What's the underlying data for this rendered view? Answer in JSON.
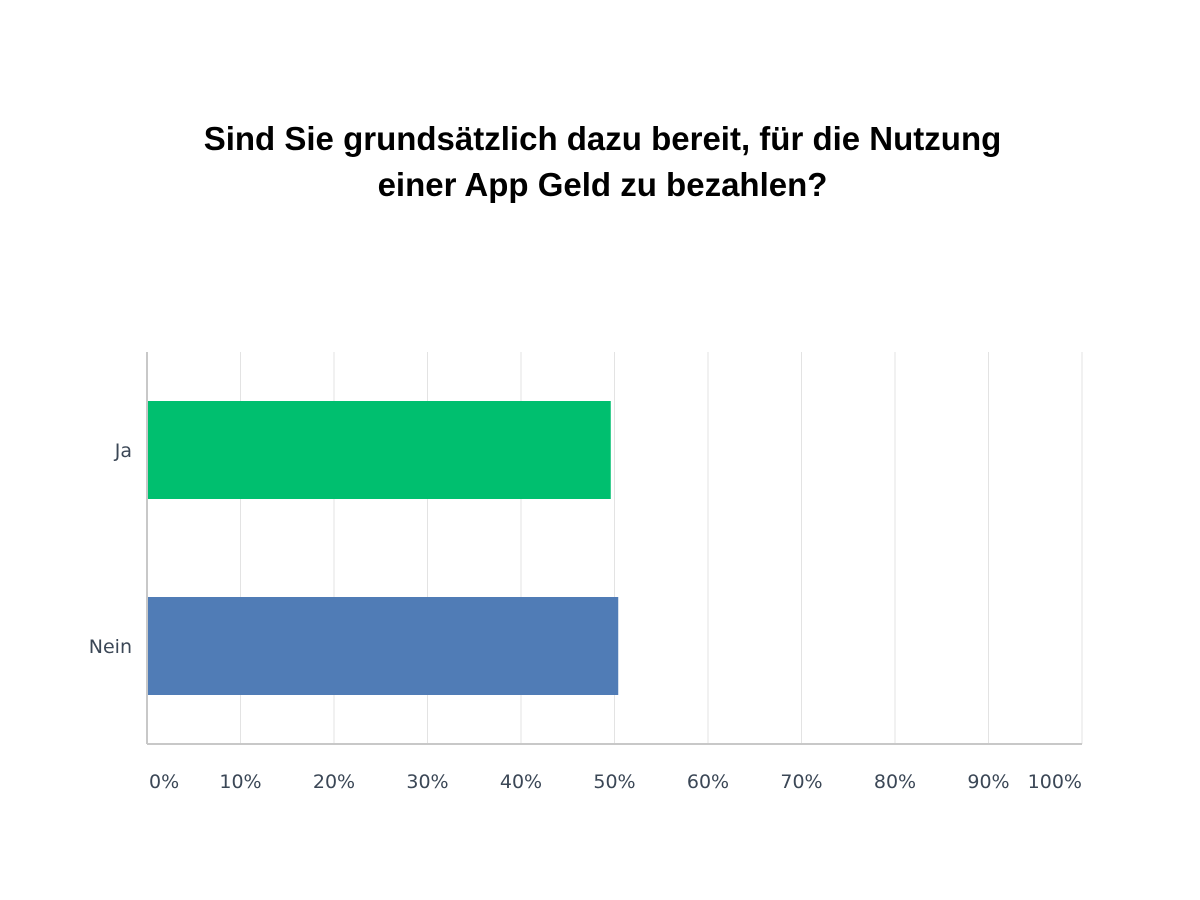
{
  "title_lines": [
    "Sind Sie grundsätzlich dazu bereit, für die Nutzung",
    "einer App Geld zu bezahlen?"
  ],
  "chart_data": {
    "type": "bar",
    "orientation": "horizontal",
    "title": "Sind Sie grundsätzlich dazu bereit, für die Nutzung einer App Geld zu bezahlen?",
    "categories": [
      "Ja",
      "Nein"
    ],
    "values": [
      49.6,
      50.4
    ],
    "value_unit": "%",
    "colors": [
      "#00bf6f",
      "#507cb6"
    ],
    "xlim": [
      0,
      100
    ],
    "xticks": [
      "0%",
      "10%",
      "20%",
      "30%",
      "40%",
      "50%",
      "60%",
      "70%",
      "80%",
      "90%",
      "100%"
    ],
    "xlabel": "",
    "ylabel": "",
    "grid": true,
    "legend": false
  }
}
